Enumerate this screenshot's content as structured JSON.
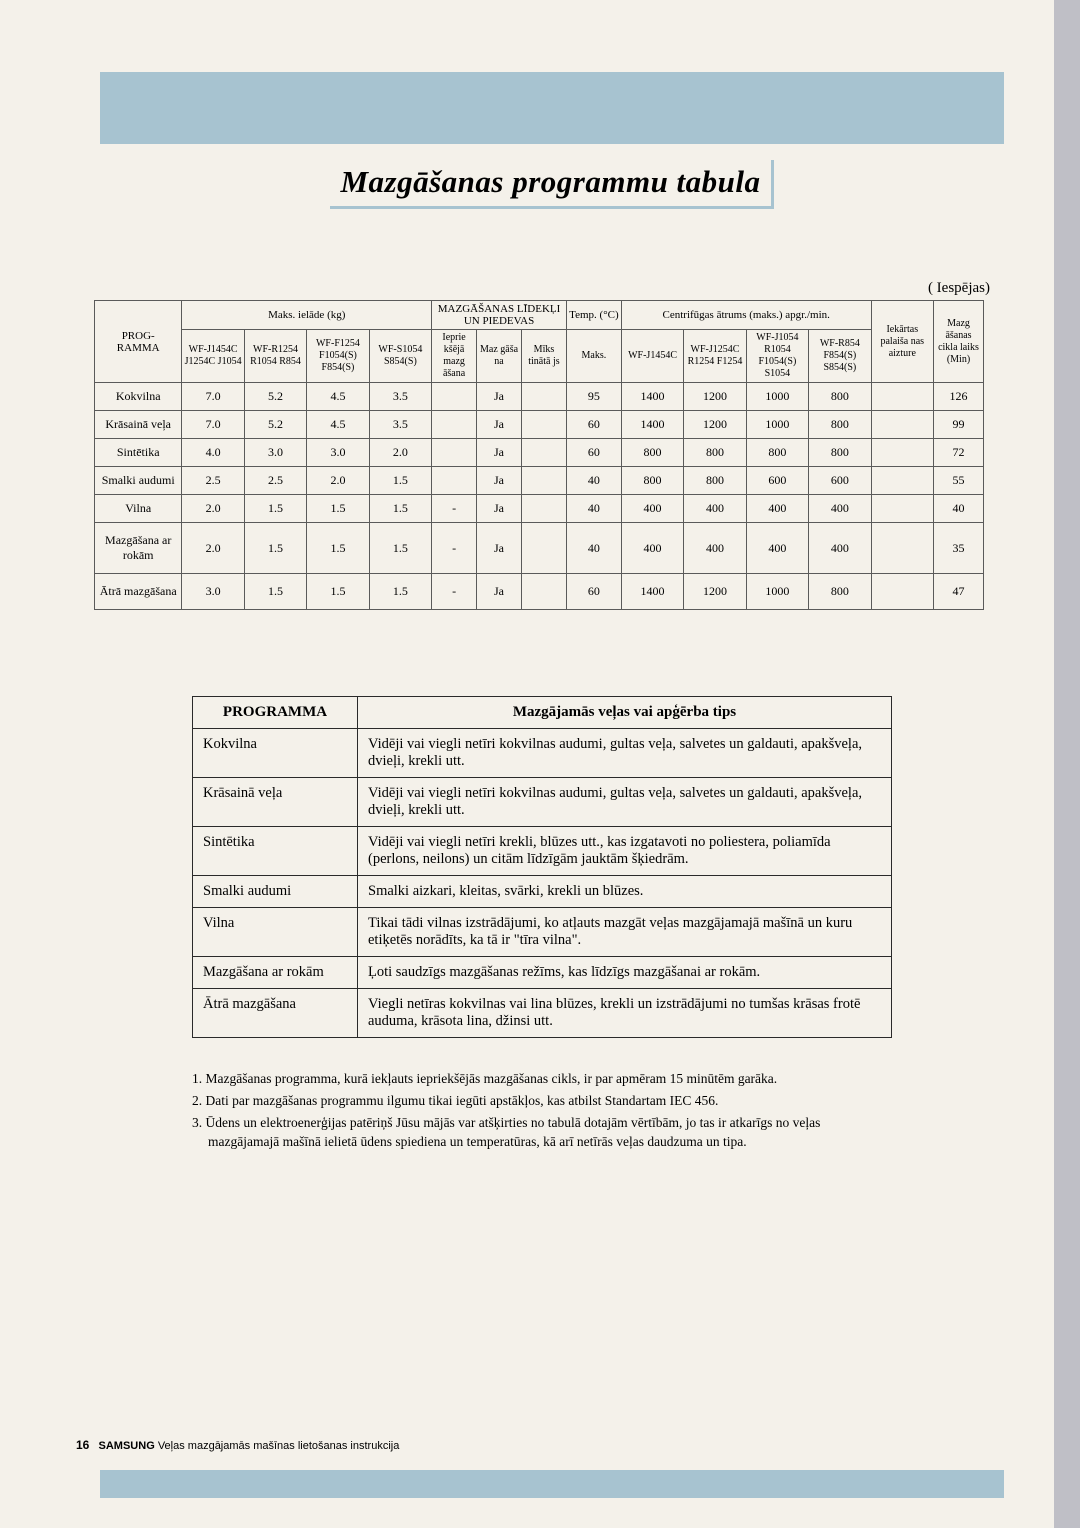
{
  "heading": "Mazgāšanas programmu tabula",
  "options_label": "(       Iespējas)",
  "table1": {
    "head": {
      "prog": "PROG-\nRAMMA",
      "load": "Maks. ielāde (kg)",
      "deterg": "MAZGĀŠANAS LĪDEKĻI UN PIEDEVAS",
      "temp": "Temp. (°C)",
      "spin": "Centrifūgas ātrums (maks.) apgr./min.",
      "iek": "Iekārtas palaiša nas aizture",
      "maz": "Mazg āšanas cikla laiks (Min)",
      "models": [
        "WF-J1454C J1254C J1054",
        "WF-R1254 R1054 R854",
        "WF-F1254 F1054(S) F854(S)",
        "WF-S1054 S854(S)"
      ],
      "deterg_sub": [
        "Ieprie kšējā mazg āšana",
        "Maz gāša na",
        "Mīks tinātā js"
      ],
      "temp_sub": "Maks.",
      "spin_models": [
        "WF-J1454C",
        "WF-J1254C R1254 F1254",
        "WF-J1054 R1054 F1054(S) S1054",
        "WF-R854 F854(S) S854(S)"
      ]
    },
    "rows": [
      {
        "name": "Kokvilna",
        "v": [
          "7.0",
          "5.2",
          "4.5",
          "3.5",
          "",
          "Ja",
          "",
          "95",
          "1400",
          "1200",
          "1000",
          "800",
          "",
          "126"
        ]
      },
      {
        "name": "Krāsainā veļa",
        "v": [
          "7.0",
          "5.2",
          "4.5",
          "3.5",
          "",
          "Ja",
          "",
          "60",
          "1400",
          "1200",
          "1000",
          "800",
          "",
          "99"
        ]
      },
      {
        "name": "Sintētika",
        "v": [
          "4.0",
          "3.0",
          "3.0",
          "2.0",
          "",
          "Ja",
          "",
          "60",
          "800",
          "800",
          "800",
          "800",
          "",
          "72"
        ]
      },
      {
        "name": "Smalki audumi",
        "v": [
          "2.5",
          "2.5",
          "2.0",
          "1.5",
          "",
          "Ja",
          "",
          "40",
          "800",
          "800",
          "600",
          "600",
          "",
          "55"
        ]
      },
      {
        "name": "Vilna",
        "v": [
          "2.0",
          "1.5",
          "1.5",
          "1.5",
          "-",
          "Ja",
          "",
          "40",
          "400",
          "400",
          "400",
          "400",
          "",
          "40"
        ]
      },
      {
        "name": "Mazgāšana ar rokām",
        "v": [
          "2.0",
          "1.5",
          "1.5",
          "1.5",
          "-",
          "Ja",
          "",
          "40",
          "400",
          "400",
          "400",
          "400",
          "",
          "35"
        ],
        "tall": true
      },
      {
        "name": "Ātrā mazgāšana",
        "v": [
          "3.0",
          "1.5",
          "1.5",
          "1.5",
          "-",
          "Ja",
          "",
          "60",
          "1400",
          "1200",
          "1000",
          "800",
          "",
          "47"
        ],
        "tall": true
      }
    ]
  },
  "table2": {
    "head": [
      "PROGRAMMA",
      "Mazgājamās veļas vai apģērba tips"
    ],
    "rows": [
      [
        "Kokvilna",
        "Vidēji vai viegli netīri kokvilnas audumi, gultas veļa, salvetes un galdauti, apakšveļa, dvieļi, krekli utt."
      ],
      [
        "Krāsainā veļa",
        "Vidēji vai viegli netīri kokvilnas audumi, gultas veļa, salvetes un galdauti, apakšveļa, dvieļi, krekli utt."
      ],
      [
        "Sintētika",
        "Vidēji vai viegli netīri krekli, blūzes utt., kas izgatavoti no poliestera, poliamīda (perlons, neilons) un citām līdzīgām jauktām šķiedrām."
      ],
      [
        "Smalki audumi",
        "Smalki aizkari, kleitas, svārki, krekli un blūzes."
      ],
      [
        "Vilna",
        "Tikai tādi vilnas izstrādājumi, ko atļauts mazgāt veļas mazgājamajā mašīnā un kuru etiķetēs norādīts, ka tā ir \"tīra vilna\"."
      ],
      [
        "Mazgāšana ar rokām",
        "Ļoti saudzīgs mazgāšanas režīms, kas līdzīgs mazgāšanai ar rokām."
      ],
      [
        "Ātrā mazgāšana",
        "Viegli netīras kokvilnas vai lina blūzes, krekli un izstrādājumi no tumšas krāsas frotē auduma, krāsota lina, džinsi utt."
      ]
    ]
  },
  "notes": [
    "1. Mazgāšanas programma, kurā iekļauts iepriekšējās mazgāšanas cikls, ir par apmēram 15 minūtēm garāka.",
    "2. Dati par mazgāšanas programmu ilgumu tikai iegūti apstākļos, kas atbilst Standartam IEC 456.",
    "3. Ūdens un elektroenerģijas patēriņš Jūsu mājās var atšķirties no tabulā dotajām vērtībām, jo tas ir atkarīgs no veļas mazgājamajā mašīnā ielietā ūdens spiediena un temperatūras, kā arī netīrās veļas daudzuma un tipa."
  ],
  "footer": {
    "page": "16",
    "brand": "SAMSUNG",
    "doc": "Veļas mazgājamās mašīnas lietošanas instrukcija"
  }
}
